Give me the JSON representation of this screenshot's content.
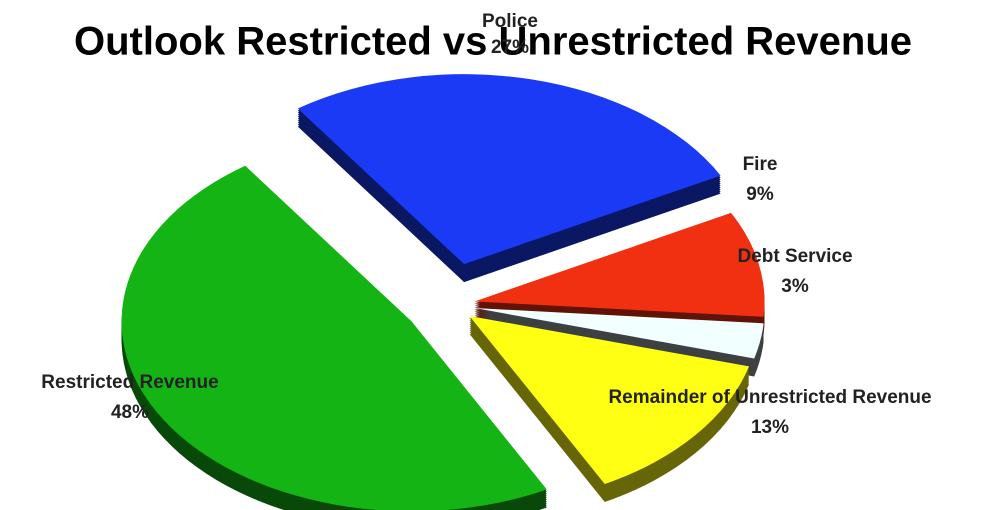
{
  "chart_data": {
    "type": "pie",
    "title": "Outlook Restricted vs Unrestricted Revenue",
    "categories": [
      "Police",
      "Fire",
      "Debt Service",
      "Remainder of Unrestricted Revenue",
      "Restricted Revenue"
    ],
    "values": [
      27,
      9,
      3,
      13,
      48
    ],
    "value_labels": [
      "27%",
      "9%",
      "3%",
      "13%",
      "48%"
    ],
    "colors": [
      "#1a3af5",
      "#f03010",
      "#f2ffff",
      "#ffff14",
      "#14b414"
    ]
  }
}
